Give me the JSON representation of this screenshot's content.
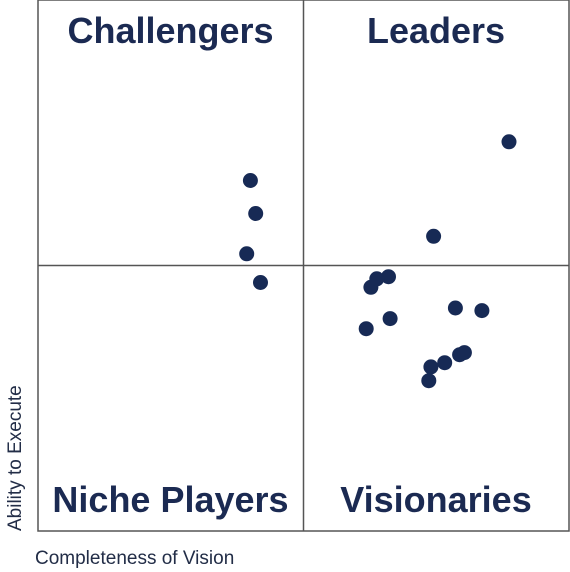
{
  "chart_data": {
    "type": "scatter",
    "title": "",
    "xlabel": "Completeness of Vision",
    "ylabel": "Ability to Execute",
    "xlim": [
      0,
      100
    ],
    "ylim": [
      0,
      100
    ],
    "grid": false,
    "quadrants": {
      "top_left": "Challengers",
      "top_right": "Leaders",
      "bottom_left": "Niche Players",
      "bottom_right": "Visionaries"
    },
    "colors": {
      "point": "#172a55",
      "frame": "#555555",
      "text": "#1b2a52",
      "axis_text": "#222d47"
    },
    "points": [
      {
        "x": 88.7,
        "y": 73.3
      },
      {
        "x": 74.5,
        "y": 55.5
      },
      {
        "x": 62.7,
        "y": 45.9
      },
      {
        "x": 41.0,
        "y": 59.8
      },
      {
        "x": 83.6,
        "y": 41.5
      },
      {
        "x": 66.3,
        "y": 40.0
      },
      {
        "x": 76.6,
        "y": 31.7
      },
      {
        "x": 79.4,
        "y": 33.2
      },
      {
        "x": 73.6,
        "y": 28.3
      },
      {
        "x": 39.3,
        "y": 52.2
      },
      {
        "x": 61.8,
        "y": 38.1
      },
      {
        "x": 41.9,
        "y": 46.8
      },
      {
        "x": 74.0,
        "y": 30.9
      },
      {
        "x": 66.0,
        "y": 47.9
      },
      {
        "x": 78.6,
        "y": 42.0
      },
      {
        "x": 40.0,
        "y": 66.0
      },
      {
        "x": 80.3,
        "y": 33.6
      },
      {
        "x": 63.8,
        "y": 47.5
      }
    ]
  }
}
